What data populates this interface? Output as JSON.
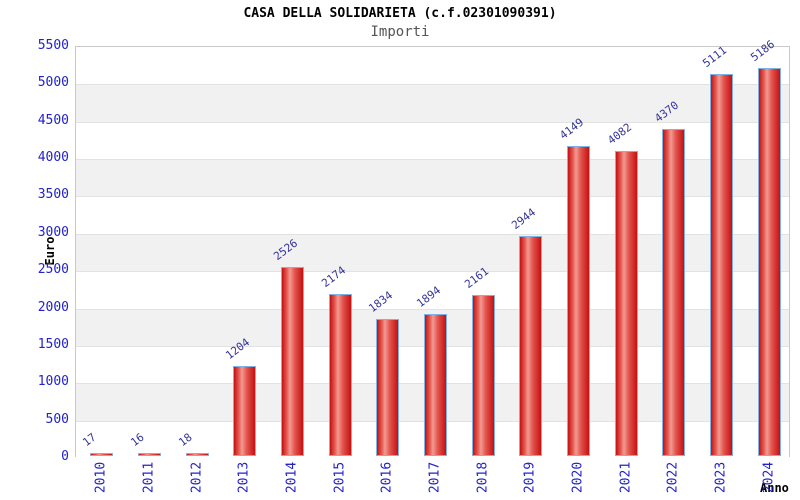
{
  "chart_data": {
    "type": "bar",
    "title": "CASA DELLA SOLIDARIETA (c.f.02301090391)",
    "subtitle": "Importi",
    "xlabel": "Anno",
    "ylabel": "Euro",
    "categories": [
      "2010",
      "2011",
      "2012",
      "2013",
      "2014",
      "2015",
      "2016",
      "2017",
      "2018",
      "2019",
      "2020",
      "2021",
      "2022",
      "2023",
      "2024"
    ],
    "values": [
      17,
      16,
      18,
      1204,
      2526,
      2174,
      1834,
      1894,
      2161,
      2944,
      4149,
      4082,
      4370,
      5111,
      5186
    ],
    "ylim": [
      0,
      5500
    ],
    "ytick_step": 500,
    "grid": "alternating horizontal bands, light gridline every 500",
    "legend": "none",
    "colors": {
      "bar_fill_edge": "#c31212",
      "bar_fill_mid": "#e4564f",
      "bar_fill_light": "#f29b93",
      "bar_border": "#7fb2e5",
      "tick_label": "#2222cc",
      "value_label": "#333399",
      "band_gray": "#f1f1f1",
      "band_white": "#ffffff",
      "gridline": "#e2e2e2",
      "plot_border": "#c9c9c9",
      "title_color": "#000000",
      "subtitle_color": "#555555"
    }
  }
}
